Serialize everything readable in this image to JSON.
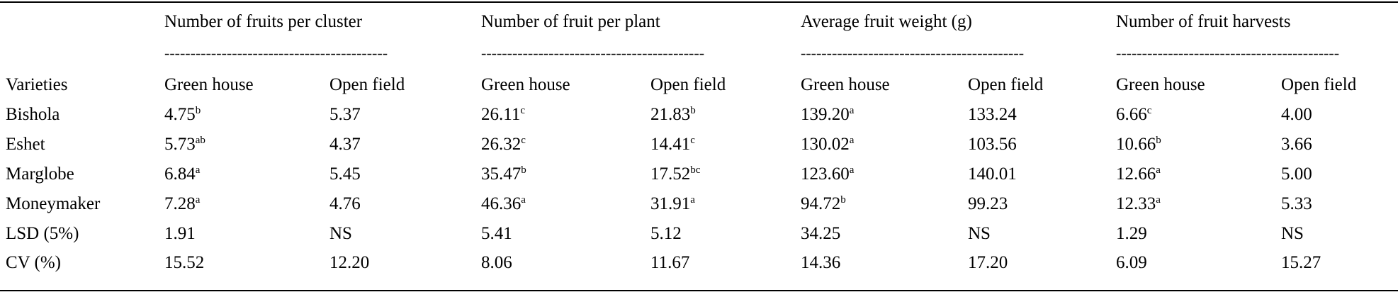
{
  "table": {
    "groups": [
      {
        "label": "Number of fruits per cluster",
        "dashes": "-------------------------------------------"
      },
      {
        "label": "Number of fruit per plant",
        "dashes": "-------------------------------------------"
      },
      {
        "label": "Average fruit weight (g)",
        "dashes": "-------------------------------------------"
      },
      {
        "label": "Number of fruit harvests",
        "dashes": "-------------------------------------------"
      }
    ],
    "row_header_label": "Varieties",
    "sub_headers": [
      "Green house",
      "Open field",
      "Green house",
      "Open field",
      "Green house",
      "Open field",
      "Green house",
      "Open field"
    ],
    "rows": [
      {
        "label": "Bishola",
        "cells": [
          {
            "v": "4.75",
            "s": "b"
          },
          {
            "v": "5.37",
            "s": ""
          },
          {
            "v": "26.11",
            "s": "c"
          },
          {
            "v": "21.83",
            "s": "b"
          },
          {
            "v": "139.20",
            "s": "a"
          },
          {
            "v": "133.24",
            "s": ""
          },
          {
            "v": "6.66",
            "s": "c"
          },
          {
            "v": "4.00",
            "s": ""
          }
        ]
      },
      {
        "label": "Eshet",
        "cells": [
          {
            "v": "5.73",
            "s": "ab"
          },
          {
            "v": "4.37",
            "s": ""
          },
          {
            "v": "26.32",
            "s": "c"
          },
          {
            "v": "14.41",
            "s": "c"
          },
          {
            "v": "130.02",
            "s": "a"
          },
          {
            "v": "103.56",
            "s": ""
          },
          {
            "v": "10.66",
            "s": "b"
          },
          {
            "v": "3.66",
            "s": ""
          }
        ]
      },
      {
        "label": "Marglobe",
        "cells": [
          {
            "v": "6.84",
            "s": "a"
          },
          {
            "v": "5.45",
            "s": ""
          },
          {
            "v": "35.47",
            "s": "b"
          },
          {
            "v": "17.52",
            "s": "bc"
          },
          {
            "v": "123.60",
            "s": "a"
          },
          {
            "v": "140.01",
            "s": ""
          },
          {
            "v": "12.66",
            "s": "a"
          },
          {
            "v": "5.00",
            "s": ""
          }
        ]
      },
      {
        "label": "Moneymaker",
        "cells": [
          {
            "v": "7.28",
            "s": "a"
          },
          {
            "v": "4.76",
            "s": ""
          },
          {
            "v": "46.36",
            "s": "a"
          },
          {
            "v": "31.91",
            "s": "a"
          },
          {
            "v": "94.72",
            "s": "b"
          },
          {
            "v": "99.23",
            "s": ""
          },
          {
            "v": "12.33",
            "s": "a"
          },
          {
            "v": "5.33",
            "s": ""
          }
        ]
      },
      {
        "label": "LSD (5%)",
        "cells": [
          {
            "v": "1.91",
            "s": ""
          },
          {
            "v": "NS",
            "s": ""
          },
          {
            "v": "5.41",
            "s": ""
          },
          {
            "v": "5.12",
            "s": ""
          },
          {
            "v": "34.25",
            "s": ""
          },
          {
            "v": "NS",
            "s": ""
          },
          {
            "v": "1.29",
            "s": ""
          },
          {
            "v": "NS",
            "s": ""
          }
        ]
      },
      {
        "label": "CV (%)",
        "cells": [
          {
            "v": "15.52",
            "s": ""
          },
          {
            "v": "12.20",
            "s": ""
          },
          {
            "v": "8.06",
            "s": ""
          },
          {
            "v": "11.67",
            "s": ""
          },
          {
            "v": "14.36",
            "s": ""
          },
          {
            "v": "17.20",
            "s": ""
          },
          {
            "v": "6.09",
            "s": ""
          },
          {
            "v": "15.27",
            "s": ""
          }
        ]
      }
    ]
  }
}
